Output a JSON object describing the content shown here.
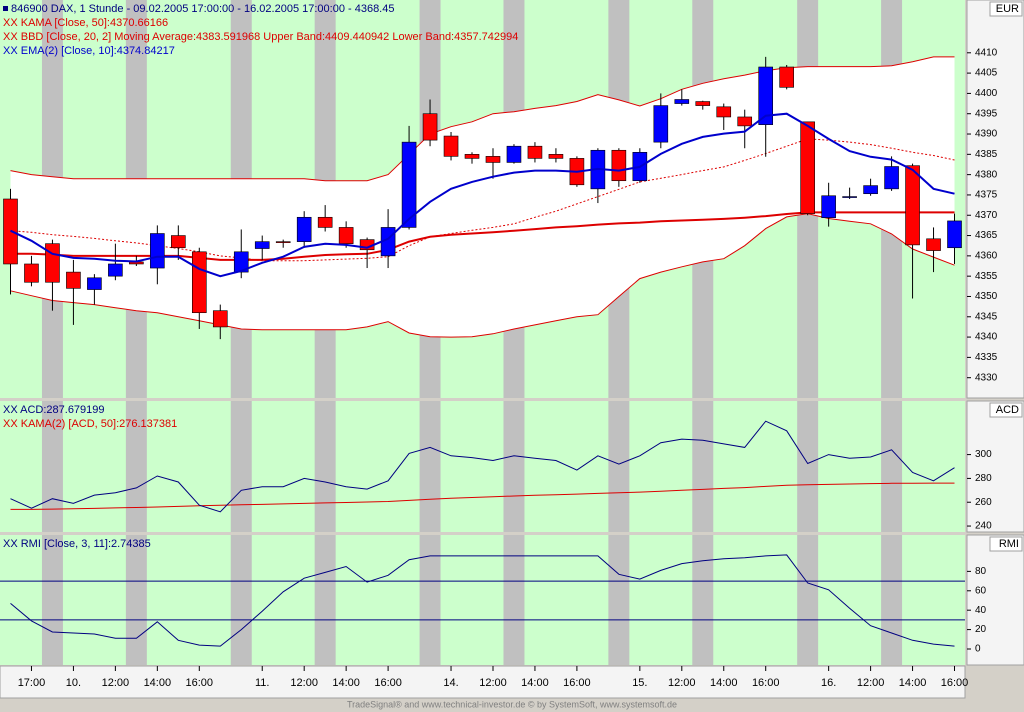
{
  "chart_data": [
    {
      "type": "candlestick",
      "title": "846900  DAX, 1 Stunde - 09.02.2005 17:00:00 - 16.02.2005 17:00:00 - 4368.45",
      "axis_label": "EUR",
      "categories": [
        null,
        "17:00",
        null,
        "10.",
        null,
        "12:00",
        null,
        "14:00",
        null,
        "16:00",
        null,
        null,
        "11.",
        null,
        "12:00",
        null,
        "14:00",
        null,
        "16:00",
        null,
        null,
        "14.",
        null,
        "12:00",
        null,
        "14:00",
        null,
        "16:00",
        null,
        null,
        "15.",
        null,
        "12:00",
        null,
        "14:00",
        null,
        "16:00",
        null,
        null,
        "16.",
        null,
        "12:00",
        null,
        "14:00",
        null,
        "16:00"
      ],
      "open": [
        4374,
        4358,
        4363,
        4356,
        4351.7,
        4355,
        4358.5,
        4357,
        4365,
        4361,
        4346.5,
        4356,
        4361.8,
        4363.5,
        4363.5,
        4369.5,
        4367,
        4364,
        4360,
        4367,
        4395,
        4389.5,
        4385,
        4384.5,
        4383,
        4387,
        4385,
        4384,
        4376.5,
        4386,
        4378.5,
        4388,
        4397.5,
        4398,
        4396.7,
        4394.2,
        4392.3,
        4406.5,
        4393,
        4369.4,
        4374.5,
        4375.3,
        4376.5,
        4382.2,
        4364.2,
        4362
      ],
      "high": [
        4376.5,
        4360,
        4364,
        4359,
        4355.5,
        4363,
        4360,
        4367.5,
        4367.5,
        4362,
        4348,
        4366.5,
        4365,
        4364,
        4371,
        4372.5,
        4368.5,
        4364.5,
        4371.5,
        4392,
        4398.5,
        4390.5,
        4385.5,
        4386.5,
        4387.5,
        4388,
        4386.5,
        4384.5,
        4386.5,
        4386.5,
        4386.5,
        4400,
        4401,
        4398.2,
        4397.5,
        4396,
        4409,
        4407,
        4393,
        4378,
        4376.8,
        4379,
        4384.5,
        4382.7,
        4367,
        4370.4
      ],
      "low": [
        4350.5,
        4352.5,
        4346.5,
        4343,
        4348,
        4354,
        4357.5,
        4353,
        4359,
        4342,
        4339.5,
        4354.5,
        4359,
        4362,
        4362,
        4366,
        4362,
        4357,
        4357,
        4366.5,
        4387,
        4383.5,
        4382.7,
        4379,
        4382.7,
        4383,
        4383,
        4377,
        4373,
        4377,
        4378,
        4386.5,
        4397,
        4396,
        4391,
        4386.5,
        4384.4,
        4401,
        4370,
        4367.2,
        4374,
        4374.8,
        4376,
        4349.5,
        4356,
        4358
      ],
      "close": [
        4358,
        4353.5,
        4353.5,
        4352,
        4354.6,
        4358,
        4358,
        4365.5,
        4362,
        4346,
        4342.5,
        4361,
        4363.5,
        4363.3,
        4369.5,
        4367,
        4363,
        4361.5,
        4367,
        4388,
        4388.5,
        4384.5,
        4384,
        4383,
        4387,
        4384,
        4384,
        4377.5,
        4386,
        4378.5,
        4385.5,
        4397,
        4398.5,
        4397,
        4394.2,
        4392,
        4406.5,
        4401.5,
        4370.4,
        4374.8,
        4374.6,
        4377.3,
        4382,
        4362.7,
        4361.3,
        4368.6
      ],
      "up_color": "#0000ff",
      "down_color": "#ff0000",
      "series": [
        {
          "name": "XX KAMA [Close, 50]:4370.66166",
          "color": "#dd0000",
          "values": [
            4360.5,
            4360.5,
            4360.3,
            4360,
            4360,
            4360,
            4360,
            4360,
            4360,
            4359.5,
            4359,
            4359,
            4359,
            4359.3,
            4359.8,
            4360.2,
            4360.4,
            4360.5,
            4361.5,
            4363.5,
            4364.7,
            4365.2,
            4365.5,
            4365.8,
            4366.2,
            4366.6,
            4367,
            4367.3,
            4367.7,
            4368,
            4368.2,
            4368.5,
            4368.7,
            4368.9,
            4369.1,
            4369.4,
            4369.8,
            4370.3,
            4370.7,
            4370.7,
            4370.7,
            4370.7,
            4370.7,
            4370.7,
            4370.7,
            4370.7
          ]
        },
        {
          "name": "XX EMA(2) [Close, 10]:4374.84217",
          "color": "#0000cc",
          "values": [
            4366.2,
            4363.7,
            4360.5,
            4359.5,
            4359.3,
            4358.8,
            4358.6,
            4359.8,
            4359.8,
            4356.8,
            4355,
            4356.3,
            4358.3,
            4359.8,
            4362.2,
            4363,
            4362.7,
            4362,
            4364.2,
            4369.1,
            4373.3,
            4376.5,
            4378.2,
            4379.5,
            4380.5,
            4381,
            4381,
            4380.7,
            4381.4,
            4381,
            4381.9,
            4385.1,
            4387.6,
            4389.3,
            4390.1,
            4390.6,
            4394.5,
            4395,
            4392,
            4388.8,
            4385.8,
            4384.4,
            4383.7,
            4381.2,
            4376.5,
            4375.3
          ]
        }
      ],
      "bands": {
        "name": "XX BBD [Close, 20, 2] Moving Average:4383.591968 Upper Band:4409.440942 Lower Band:4357.742994",
        "color": "#dd0000",
        "upper": [
          4381,
          4380,
          4379.5,
          4379,
          4379,
          4379,
          4379,
          4379,
          4379,
          4379,
          4379,
          4379,
          4379,
          4379,
          4379,
          4378.5,
          4378.5,
          4378.5,
          4380,
          4385,
          4390,
          4391.8,
          4393,
          4395,
          4395.5,
          4396.3,
          4397,
          4398,
          4399.7,
          4398.4,
          4396.9,
          4398.7,
          4401,
          4402.5,
          4403.6,
          4404.5,
          4405.6,
          4406.3,
          4406.6,
          4406.6,
          4406.6,
          4406.6,
          4406.8,
          4407.8,
          4409,
          4409
        ],
        "middle": [
          4366.2,
          4365.8,
          4365.2,
          4364.8,
          4364.3,
          4363.7,
          4363.2,
          4362.5,
          4361.8,
          4361,
          4360,
          4359.5,
          4358.8,
          4358.8,
          4358.8,
          4359,
          4359.2,
          4359.4,
          4359.8,
          4362.5,
          4364.7,
          4365.5,
          4366.3,
          4367,
          4367.9,
          4369.5,
          4371,
          4372.8,
          4374.6,
          4376.4,
          4378.2,
          4379.1,
          4380,
          4381,
          4381.9,
          4383.5,
          4385.2,
          4387,
          4388.8,
          4388.5,
          4388,
          4387.4,
          4386.5,
          4385.5,
          4384.7,
          4383.6
        ],
        "lower": [
          4351.4,
          4350.2,
          4349,
          4348.5,
          4348,
          4347.2,
          4346.5,
          4346,
          4345,
          4344,
          4343,
          4342,
          4341.8,
          4341.8,
          4341.8,
          4341.8,
          4341.8,
          4342.5,
          4343.8,
          4341,
          4340.1,
          4340,
          4340.1,
          4340.8,
          4342,
          4343,
          4344,
          4345,
          4345.5,
          4350,
          4354.4,
          4356,
          4357.3,
          4358.5,
          4359.3,
          4362.5,
          4366.7,
          4369.6,
          4370.4,
          4369.2,
          4368.5,
          4367.9,
          4365.4,
          4361.7,
          4359.7,
          4357.7
        ]
      },
      "ylim": [
        4325,
        4423
      ],
      "yticks": [
        4330,
        4335,
        4340,
        4345,
        4350,
        4355,
        4360,
        4365,
        4370,
        4375,
        4380,
        4385,
        4390,
        4395,
        4400,
        4405,
        4410
      ]
    },
    {
      "type": "line",
      "axis_label": "ACD",
      "series": [
        {
          "name": "XX ACD:287.679199",
          "color": "#000080",
          "values": [
            263,
            255,
            263,
            259,
            266,
            268,
            272,
            282,
            277,
            257.5,
            252,
            270,
            273,
            273,
            280,
            277,
            273,
            271,
            278,
            301,
            306,
            299,
            297.5,
            295,
            299,
            297,
            295,
            287,
            299,
            292,
            299,
            310,
            313,
            312,
            309,
            306,
            328,
            320,
            292.5,
            300,
            297,
            298,
            304,
            285,
            278,
            289
          ]
        },
        {
          "name": "XX KAMA(2) [ACD, 50]:276.137381",
          "color": "#dd0000",
          "values": [
            254,
            254,
            254.2,
            254.5,
            254.8,
            255.2,
            255.6,
            256,
            256.5,
            257,
            257.4,
            257.8,
            258.2,
            258.6,
            259,
            259.4,
            259.8,
            260.2,
            260.6,
            261.5,
            262.5,
            263.3,
            264,
            264.6,
            265.2,
            265.8,
            266.3,
            266.8,
            267.4,
            267.9,
            268.5,
            269.2,
            270,
            270.8,
            271.6,
            272.3,
            273.3,
            274.2,
            274.6,
            275,
            275.3,
            275.6,
            275.9,
            276,
            276.1,
            276.1
          ]
        }
      ],
      "ylim": [
        235,
        345
      ],
      "yticks": [
        240,
        260,
        280,
        300
      ]
    },
    {
      "type": "line",
      "axis_label": "RMI",
      "series": [
        {
          "name": "XX RMI [Close, 3, 11]:2.74385",
          "color": "#000080",
          "values": [
            47,
            29,
            17.5,
            16.5,
            15.5,
            11,
            11,
            28,
            9,
            4,
            3,
            20,
            39,
            59,
            73,
            79,
            85,
            69,
            76,
            92,
            96,
            96,
            96,
            96,
            96,
            96,
            96,
            96,
            96,
            77,
            72,
            81,
            88,
            91,
            93,
            94,
            96,
            97,
            68,
            61,
            42,
            24,
            16.5,
            9,
            5,
            3
          ]
        }
      ],
      "levels": [
        70,
        30
      ],
      "level_color": "#000080",
      "ylim": [
        -16.5,
        117.5
      ],
      "yticks": [
        0,
        20,
        40,
        60,
        80
      ]
    }
  ],
  "footer": "TradeSignal® and www.technical-investor.de © by  SystemSoft, www.systemsoft.de"
}
